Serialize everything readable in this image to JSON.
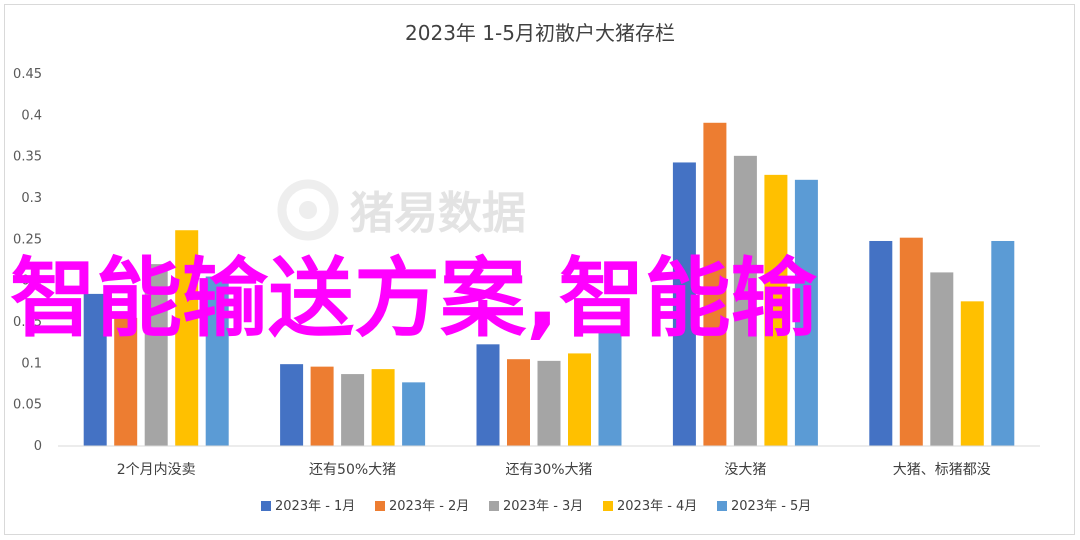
{
  "chart_data": {
    "type": "bar",
    "title": "2023年 1-5月初散户大猪存栏",
    "categories": [
      "2个月内没卖",
      "还有50%大猪",
      "还有30%大猪",
      "没大猪",
      "大猪、标猪都没"
    ],
    "series": [
      {
        "name": "2023年 - 1月",
        "color": "#4472c4",
        "values": [
          0.184,
          0.099,
          0.123,
          0.343,
          0.248
        ]
      },
      {
        "name": "2023年 - 2月",
        "color": "#ed7d31",
        "values": [
          0.155,
          0.096,
          0.105,
          0.391,
          0.252
        ]
      },
      {
        "name": "2023年 - 3月",
        "color": "#a5a5a5",
        "values": [
          0.22,
          0.087,
          0.103,
          0.351,
          0.21
        ]
      },
      {
        "name": "2023年 - 4月",
        "color": "#ffc000",
        "values": [
          0.261,
          0.093,
          0.112,
          0.328,
          0.175
        ]
      },
      {
        "name": "2023年 - 5月",
        "color": "#5b9bd5",
        "values": [
          0.205,
          0.077,
          0.145,
          0.322,
          0.248
        ]
      }
    ],
    "ylim": [
      0,
      0.45
    ],
    "yticks": [
      "0",
      "0.05",
      "0.1",
      "0.15",
      "0.2",
      "0.25",
      "0.3",
      "0.35",
      "0.4",
      "0.45"
    ],
    "grid": false,
    "legend": "bottom"
  },
  "watermark": {
    "text": "猪易数据"
  },
  "overlay": {
    "text": "智能输送方案,智能输"
  }
}
